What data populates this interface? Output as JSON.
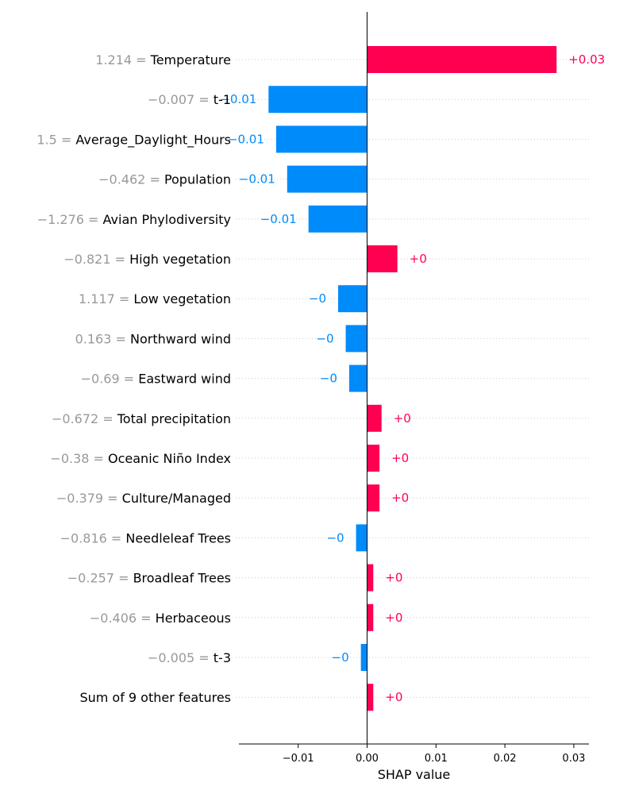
{
  "chart_data": {
    "type": "bar",
    "orientation": "horizontal",
    "style": "shap-waterfall-bar",
    "xlabel": "SHAP value",
    "xlim": [
      -0.0186,
      0.0322
    ],
    "xticks": [
      -0.01,
      0.0,
      0.01,
      0.02,
      0.03
    ],
    "xtick_labels": [
      "−0.01",
      "0.00",
      "0.01",
      "0.02",
      "0.03"
    ],
    "colors": {
      "positive": "#ff0051",
      "negative": "#008bfb",
      "grid": "#cccccc",
      "zero_line": "#000000",
      "feature_value": "#999999"
    },
    "features": [
      {
        "value": "1.214",
        "name": "Temperature",
        "shap": 0.0275,
        "label": "+0.03"
      },
      {
        "value": "−0.007",
        "name": "t-1",
        "shap": -0.0143,
        "label": "−0.01"
      },
      {
        "value": "1.5",
        "name": "Average_Daylight_Hours",
        "shap": -0.0132,
        "label": "−0.01"
      },
      {
        "value": "−0.462",
        "name": "Population",
        "shap": -0.0116,
        "label": "−0.01"
      },
      {
        "value": "−1.276",
        "name": "Avian Phylodiversity",
        "shap": -0.0085,
        "label": "−0.01"
      },
      {
        "value": "−0.821",
        "name": "High vegetation",
        "shap": 0.0044,
        "label": "+0"
      },
      {
        "value": "1.117",
        "name": "Low vegetation",
        "shap": -0.0042,
        "label": "−0"
      },
      {
        "value": "0.163",
        "name": "Northward wind",
        "shap": -0.0031,
        "label": "−0"
      },
      {
        "value": "−0.69",
        "name": "Eastward wind",
        "shap": -0.0026,
        "label": "−0"
      },
      {
        "value": "−0.672",
        "name": "Total precipitation",
        "shap": 0.0021,
        "label": "+0"
      },
      {
        "value": "−0.38",
        "name": "Oceanic Niño Index",
        "shap": 0.0018,
        "label": "+0"
      },
      {
        "value": "−0.379",
        "name": "Culture/Managed",
        "shap": 0.0018,
        "label": "+0"
      },
      {
        "value": "−0.816",
        "name": "Needleleaf Trees",
        "shap": -0.0016,
        "label": "−0"
      },
      {
        "value": "−0.257",
        "name": "Broadleaf Trees",
        "shap": 0.0009,
        "label": "+0"
      },
      {
        "value": "−0.406",
        "name": "Herbaceous",
        "shap": 0.0009,
        "label": "+0"
      },
      {
        "value": "−0.005",
        "name": "t-3",
        "shap": -0.0009,
        "label": "−0"
      },
      {
        "value": "",
        "name": "Sum of 9 other features",
        "shap": 0.0009,
        "label": "+0"
      }
    ]
  }
}
